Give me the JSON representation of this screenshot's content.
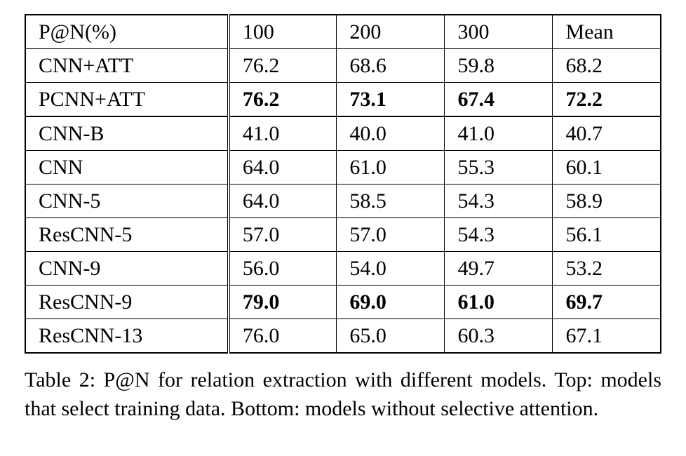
{
  "table": {
    "caption": "Table 2: P@N for relation extraction with different models. Top: models that select training data. Bottom: models without selective attention.",
    "columns": [
      "P@N(%)",
      "100",
      "200",
      "300",
      "Mean"
    ],
    "column_widths_pct": [
      32,
      17,
      17,
      17,
      17
    ],
    "border_color": "#000000",
    "background_color": "#ffffff",
    "font_family": "Times New Roman",
    "header_fontsize_pt": 22,
    "cell_fontsize_pt": 22,
    "caption_fontsize_pt": 22,
    "double_rule_after_col": 0,
    "blocks": [
      {
        "rows": [
          {
            "label": "P@N(%)",
            "values": [
              "100",
              "200",
              "300",
              "Mean"
            ],
            "bold": [
              false,
              false,
              false,
              false,
              false
            ]
          },
          {
            "label": "CNN+ATT",
            "values": [
              "76.2",
              "68.6",
              "59.8",
              "68.2"
            ],
            "bold": [
              false,
              false,
              false,
              false,
              false
            ]
          },
          {
            "label": "PCNN+ATT",
            "values": [
              "76.2",
              "73.1",
              "67.4",
              "72.2"
            ],
            "bold": [
              false,
              true,
              true,
              true,
              true
            ]
          }
        ]
      },
      {
        "rows": [
          {
            "label": "CNN-B",
            "values": [
              "41.0",
              "40.0",
              "41.0",
              "40.7"
            ],
            "bold": [
              false,
              false,
              false,
              false,
              false
            ]
          },
          {
            "label": "CNN",
            "values": [
              "64.0",
              "61.0",
              "55.3",
              "60.1"
            ],
            "bold": [
              false,
              false,
              false,
              false,
              false
            ]
          },
          {
            "label": "CNN-5",
            "values": [
              "64.0",
              "58.5",
              "54.3",
              "58.9"
            ],
            "bold": [
              false,
              false,
              false,
              false,
              false
            ]
          },
          {
            "label": "ResCNN-5",
            "values": [
              "57.0",
              "57.0",
              "54.3",
              "56.1"
            ],
            "bold": [
              false,
              false,
              false,
              false,
              false
            ]
          },
          {
            "label": "CNN-9",
            "values": [
              "56.0",
              "54.0",
              "49.7",
              "53.2"
            ],
            "bold": [
              false,
              false,
              false,
              false,
              false
            ]
          },
          {
            "label": "ResCNN-9",
            "values": [
              "79.0",
              "69.0",
              "61.0",
              "69.7"
            ],
            "bold": [
              false,
              true,
              true,
              true,
              true
            ]
          },
          {
            "label": "ResCNN-13",
            "values": [
              "76.0",
              "65.0",
              "60.3",
              "67.1"
            ],
            "bold": [
              false,
              false,
              false,
              false,
              false
            ]
          }
        ]
      }
    ]
  }
}
